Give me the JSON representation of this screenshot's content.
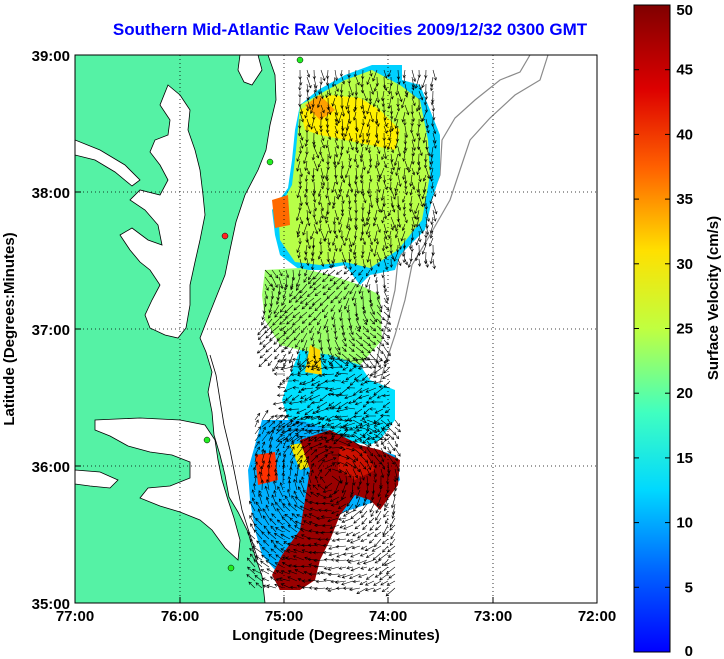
{
  "title": "Southern Mid-Atlantic Raw Velocities 2009/12/32 0300 GMT",
  "axes": {
    "xlabel": "Longitude (Degrees:Minutes)",
    "ylabel": "Latitude (Degrees:Minutes)",
    "xticks": [
      "77:00",
      "76:00",
      "75:00",
      "74:00",
      "73:00",
      "72:00"
    ],
    "yticks": [
      "39:00",
      "38:00",
      "37:00",
      "36:00",
      "35:00"
    ]
  },
  "colorbar": {
    "label": "Surface Velocity (cm/s)",
    "ticks": [
      "0",
      "5",
      "10",
      "15",
      "20",
      "25",
      "30",
      "35",
      "40",
      "45",
      "50"
    ],
    "min": 0,
    "max": 50
  },
  "colors": {
    "land": "#55f2a5",
    "title": "#0000ff",
    "station": "#22ee22",
    "station_alert": "#ff2222"
  }
}
